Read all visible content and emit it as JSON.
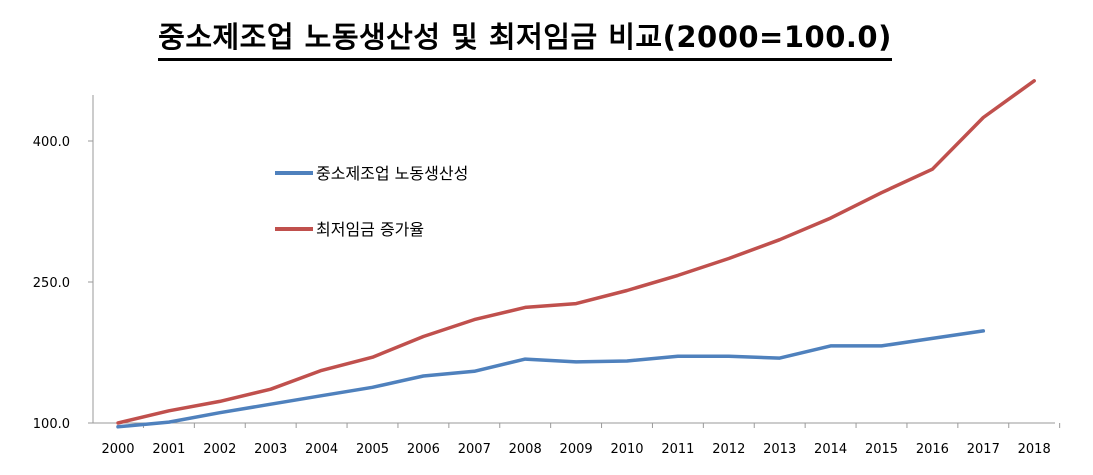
{
  "chart_data": {
    "type": "line",
    "title": "중소제조업 노동생산성 및 최저임금 비교(2000=100.0)",
    "xlabel": "",
    "ylabel": "",
    "categories": [
      "2000",
      "2001",
      "2002",
      "2003",
      "2004",
      "2005",
      "2006",
      "2007",
      "2008",
      "2009",
      "2010",
      "2011",
      "2012",
      "2013",
      "2014",
      "2015",
      "2016",
      "2017",
      "2018"
    ],
    "yticks": [
      "100.0",
      "250.0",
      "400.0"
    ],
    "ylim": [
      100,
      450
    ],
    "grid": false,
    "legend_position": "upper-left",
    "series": [
      {
        "name": "중소제조업 노동생산성",
        "color": "#4f81bd",
        "values": [
          96,
          101,
          111,
          120,
          129,
          138,
          150,
          155,
          168,
          165,
          166,
          171,
          171,
          169,
          182,
          182,
          190,
          198,
          null
        ]
      },
      {
        "name": "최저임금 증가율",
        "color": "#c0504d",
        "values": [
          100,
          113,
          123,
          136,
          156,
          170,
          192,
          210,
          223,
          227,
          241,
          257,
          275,
          295,
          318,
          345,
          370,
          425,
          464
        ]
      }
    ]
  }
}
